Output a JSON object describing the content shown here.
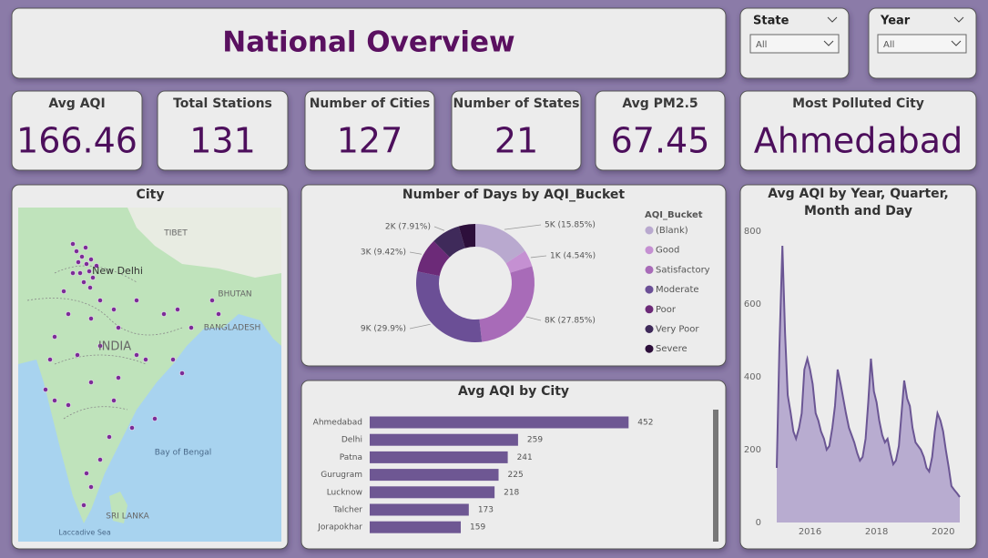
{
  "header": {
    "title": "National Overview"
  },
  "filters": [
    {
      "label": "State",
      "value": "All"
    },
    {
      "label": "Year",
      "value": "All"
    }
  ],
  "cards": [
    {
      "label": "Avg AQI",
      "value": 166.46
    },
    {
      "label": "Total Stations",
      "value": 131
    },
    {
      "label": "Number of Cities",
      "value": 127
    },
    {
      "label": "Number of States",
      "value": 21
    },
    {
      "label": "Avg PM2.5",
      "value": 67.45
    },
    {
      "label": "Most Polluted City",
      "value": "Ahmedabad"
    }
  ],
  "map": {
    "title": "City",
    "labels": [
      "TIBET",
      "New Delhi",
      "BHUTAN",
      "BANGLADESH",
      "INDIA",
      "Bay of Bengal",
      "SRI LANKA",
      "Laccadive Sea"
    ]
  },
  "chart_data": [
    {
      "type": "pie",
      "title": "Number of Days by AQI_Bucket",
      "legend_title": "AQI_Bucket",
      "donut": true,
      "categories": [
        "(Blank)",
        "Good",
        "Satisfactory",
        "Moderate",
        "Poor",
        "Very Poor",
        "Severe"
      ],
      "values": [
        15.85,
        4.54,
        27.85,
        29.9,
        9.42,
        7.91,
        4.53
      ],
      "value_labels": [
        "5K (15.85%)",
        "1K (4.54%)",
        "8K (27.85%)",
        "9K (29.9%)",
        "3K (9.42%)",
        "2K (7.91%)",
        null
      ],
      "colors": [
        "#b9a9cf",
        "#c590d2",
        "#a86bb8",
        "#6b4f96",
        "#6c2a78",
        "#3f2a5a",
        "#2d0f3b"
      ]
    },
    {
      "type": "bar",
      "title": "Avg AQI by City",
      "categories": [
        "Ahmedabad",
        "Delhi",
        "Patna",
        "Gurugram",
        "Lucknow",
        "Talcher",
        "Jorapokhar"
      ],
      "values": [
        452,
        259,
        241,
        225,
        218,
        173,
        159
      ],
      "color": "#6e5793"
    },
    {
      "type": "area",
      "title": "Avg AQI by Year, Quarter, Month and Day",
      "x": [
        2015,
        2015.08,
        2015.17,
        2015.25,
        2015.33,
        2015.42,
        2015.5,
        2015.58,
        2015.67,
        2015.75,
        2015.83,
        2015.92,
        2016,
        2016.08,
        2016.17,
        2016.25,
        2016.33,
        2016.42,
        2016.5,
        2016.58,
        2016.67,
        2016.75,
        2016.83,
        2016.92,
        2017,
        2017.08,
        2017.17,
        2017.25,
        2017.33,
        2017.42,
        2017.5,
        2017.58,
        2017.67,
        2017.75,
        2017.83,
        2017.92,
        2018,
        2018.08,
        2018.17,
        2018.25,
        2018.33,
        2018.42,
        2018.5,
        2018.58,
        2018.67,
        2018.75,
        2018.83,
        2018.92,
        2019,
        2019.08,
        2019.17,
        2019.25,
        2019.33,
        2019.42,
        2019.5,
        2019.58,
        2019.67,
        2019.75,
        2019.83,
        2019.92,
        2020,
        2020.08,
        2020.17,
        2020.25,
        2020.33,
        2020.42,
        2020.5
      ],
      "values": [
        150,
        480,
        760,
        520,
        350,
        300,
        250,
        230,
        260,
        300,
        420,
        450,
        420,
        380,
        300,
        280,
        250,
        230,
        200,
        210,
        260,
        320,
        420,
        380,
        340,
        300,
        260,
        240,
        220,
        190,
        170,
        180,
        230,
        330,
        450,
        360,
        330,
        280,
        240,
        220,
        230,
        190,
        160,
        170,
        210,
        300,
        390,
        340,
        320,
        260,
        220,
        210,
        200,
        180,
        150,
        140,
        180,
        250,
        300,
        280,
        250,
        200,
        150,
        100,
        90,
        80,
        70
      ],
      "xlim": [
        2015,
        2020.5
      ],
      "ylim": [
        0,
        800
      ],
      "xticks": [
        2016,
        2018,
        2020
      ],
      "yticks": [
        0,
        200,
        400,
        600,
        800
      ],
      "color": "#6b5694",
      "fill": "#b8acd0"
    }
  ]
}
